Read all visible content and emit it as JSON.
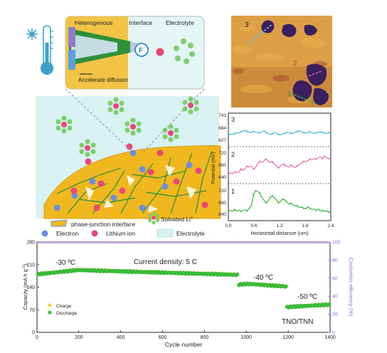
{
  "schematic": {
    "inset_labels": {
      "heterogenous": "Heterogenous",
      "interface": "Interface",
      "electrolyte": "Electrolyte",
      "accelerate": "Accelerate diffusion",
      "f_label": "F",
      "li_symbol": "Li",
      "e_symbol": "e"
    },
    "legend": {
      "phase_junction": "phase-junction interface",
      "solvated": "Solvated Li",
      "solvated_sup": "+",
      "electron": "Electron",
      "lithium_ion": "Lithium ion",
      "electrolyte": "Electrolyte"
    },
    "colors": {
      "electrolyte_bg": "#d8f1f3",
      "electrode": "#f0b81e",
      "electrode_mesh": "#2f8f3a",
      "electron": "#6b8fe0",
      "lithium": "#e9477a",
      "solvent": "#7fce6a"
    }
  },
  "afm": {
    "regions": [
      "3",
      "2",
      "1"
    ],
    "colors": {
      "bg": "#d69a3c",
      "domain": "#3a2060",
      "line": "#5ac0e8"
    }
  },
  "potential_profiles": {
    "ylabel": "Potential (mV)",
    "xlabel": "Horizontal distance (um)",
    "xlim": [
      0.0,
      2.4
    ],
    "xticks": [
      "0.0",
      "0.6",
      "1.2",
      "1.8",
      "2.4"
    ],
    "panels": [
      {
        "name": "3",
        "color": "#45b6d8",
        "yticks": [
          "741",
          "684",
          "627"
        ],
        "yrange": [
          600,
          750
        ],
        "values": [
          648,
          652,
          650,
          655,
          660,
          658,
          665,
          670,
          672,
          668,
          660,
          662,
          666,
          663,
          658,
          660,
          664,
          669,
          662,
          655,
          650,
          654,
          660,
          658,
          650,
          648,
          652,
          657,
          662,
          660,
          655,
          658,
          663,
          667,
          670,
          665,
          660,
          658,
          662,
          664,
          660,
          657,
          660,
          662,
          665,
          660,
          658,
          656,
          660,
          662
        ]
      },
      {
        "name": "2",
        "color": "#e86aa8",
        "yticks": [
          "720",
          "680",
          "640"
        ],
        "yrange": [
          615,
          735
        ],
        "values": [
          640,
          645,
          642,
          648,
          650,
          646,
          660,
          655,
          662,
          670,
          668,
          672,
          660,
          665,
          680,
          690,
          685,
          692,
          698,
          690,
          685,
          688,
          678,
          670,
          665,
          672,
          680,
          676,
          670,
          668,
          675,
          670,
          666,
          672,
          678,
          682,
          690,
          688,
          692,
          698,
          695,
          700,
          698,
          704,
          706,
          700,
          710,
          702,
          700,
          698
        ]
      },
      {
        "name": "1",
        "color": "#3bb43c",
        "yticks": [
          "720",
          "680",
          "640"
        ],
        "yrange": [
          615,
          730
        ],
        "values": [
          640,
          642,
          638,
          645,
          640,
          643,
          638,
          642,
          645,
          640,
          650,
          660,
          700,
          715,
          712,
          705,
          690,
          680,
          670,
          675,
          690,
          695,
          688,
          680,
          670,
          675,
          685,
          680,
          672,
          665,
          668,
          662,
          658,
          660,
          652,
          655,
          650,
          648,
          655,
          650,
          645,
          648,
          642,
          646,
          640,
          642,
          638,
          640,
          636,
          638
        ]
      }
    ]
  },
  "chart_data": {
    "type": "scatter",
    "xlabel": "Cycle number",
    "ylabel_left": "Capacity (mA h g",
    "ylabel_left_sup": "-1",
    "ylabel_left_close": ")",
    "ylabel_right": "Coulombic efficiency (%)",
    "xlim": [
      0,
      1400
    ],
    "ylim_left": [
      0,
      280
    ],
    "ylim_right": [
      0,
      100
    ],
    "xticks": [
      "0",
      "200",
      "400",
      "600",
      "800",
      "1000",
      "1200",
      "1400"
    ],
    "yticks_left": [
      "0",
      "70",
      "140",
      "210",
      "280"
    ],
    "yticks_right": [
      "0",
      "20",
      "40",
      "60",
      "80",
      "100"
    ],
    "annotations": {
      "t1": "-30 ºC",
      "t2": "-40 ºC",
      "t3": "-50 ºC",
      "density": "Current density: 5 C",
      "sample": "TNO/TNN"
    },
    "legend": {
      "charge": "Charge",
      "discharge": "Discharge"
    },
    "segments": [
      {
        "x_start": 5,
        "x_end": 960,
        "discharge_start": 180,
        "discharge_peak": 193,
        "discharge_end": 178
      },
      {
        "x_start": 965,
        "x_end": 1190,
        "discharge_start": 148,
        "discharge_peak": 150,
        "discharge_end": 142
      },
      {
        "x_start": 1195,
        "x_end": 1400,
        "discharge_start": 78,
        "discharge_peak": 80,
        "discharge_end": 86
      }
    ],
    "coulombic_efficiency": 100,
    "colors": {
      "charge": "#f5d23a",
      "discharge": "#3cc43a",
      "ce": "#c9a7e8"
    }
  }
}
